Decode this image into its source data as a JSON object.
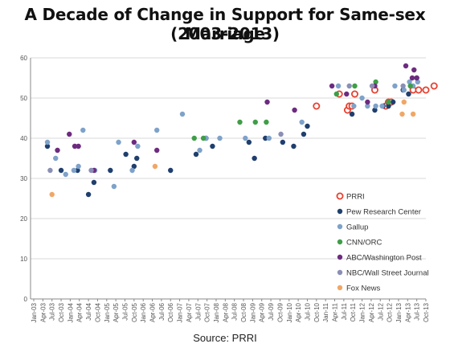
{
  "chart_data": {
    "type": "scatter",
    "title": "A Decade of Change in Support for Same-sex Marriage",
    "subtitle": "(2003-2013)",
    "source": "Source: PRRI",
    "ylim": [
      0,
      60
    ],
    "yticks": [
      0,
      10,
      20,
      30,
      40,
      50,
      60
    ],
    "x_ticks": [
      "Jan-03",
      "Apr-03",
      "Jul-03",
      "Oct-03",
      "Jan-04",
      "Apr-04",
      "Jul-04",
      "Oct-04",
      "Jan-05",
      "Apr-05",
      "Jul-05",
      "Oct-05",
      "Jan-06",
      "Apr-06",
      "Jul-06",
      "Oct-06",
      "Jan-07",
      "Apr-07",
      "Jul-07",
      "Oct-07",
      "Jan-08",
      "Apr-08",
      "Jul-08",
      "Oct-08",
      "Jan-09",
      "Apr-09",
      "Jul-09",
      "Oct-09",
      "Jan-10",
      "Apr-10",
      "Jul-10",
      "Oct-10",
      "Jan-11",
      "Apr-11",
      "Jul-11",
      "Oct-11",
      "Jan-12",
      "Apr-12",
      "Jul-12",
      "Oct-12",
      "Jan-13",
      "Apr-13",
      "Jul-13",
      "Oct-13"
    ],
    "grid": "horizontal",
    "legend_position": "right",
    "series": [
      {
        "name": "PRRI",
        "color": "#e8402f",
        "hollow": true,
        "x": [
          31.0,
          33.5,
          34.4,
          34.6,
          34.9,
          35.2,
          37.4,
          38.6,
          38.9,
          39.2,
          41.6,
          42.2,
          43.0,
          43.9
        ],
        "y": [
          48,
          51,
          47,
          48,
          48,
          51,
          52,
          48,
          49,
          49,
          52,
          52,
          52,
          53
        ]
      },
      {
        "name": "Pew Research Center",
        "color": "#1f3f6e",
        "hollow": false,
        "x": [
          1.5,
          3.0,
          4.8,
          6.0,
          6.6,
          8.4,
          10.1,
          11.0,
          11.3,
          15.0,
          17.8,
          18.9,
          19.6,
          23.6,
          24.2,
          25.4,
          27.3,
          28.5,
          29.6,
          30.0,
          34.9,
          37.4,
          38.3,
          38.9,
          39.4,
          40.5,
          41.1,
          42.0
        ],
        "y": [
          38,
          32,
          32,
          26,
          29,
          32,
          36,
          33,
          35,
          32,
          36,
          40,
          38,
          39,
          35,
          40,
          39,
          38,
          41,
          43,
          46,
          47,
          48,
          48,
          49,
          52,
          51,
          55
        ]
      },
      {
        "name": "Gallup",
        "color": "#7ea2c9",
        "hollow": false,
        "x": [
          1.5,
          2.4,
          3.5,
          4.4,
          4.9,
          5.4,
          6.7,
          8.8,
          9.3,
          10.8,
          11.4,
          13.5,
          16.3,
          18.2,
          18.9,
          20.4,
          23.2,
          25.8,
          29.4,
          33.4,
          35.1,
          36.0,
          36.6,
          37.5,
          38.2,
          39.6,
          40.6,
          41.2,
          41.6,
          42.1
        ],
        "y": [
          39,
          35,
          31,
          32,
          33,
          42,
          32,
          28,
          39,
          32,
          38,
          42,
          46,
          37,
          40,
          40,
          40,
          40,
          44,
          53,
          48,
          50,
          48,
          48,
          48,
          53,
          52,
          54,
          53,
          54
        ]
      },
      {
        "name": "CNN/ORC",
        "color": "#3f9e47",
        "hollow": false,
        "x": [
          17.6,
          18.6,
          22.6,
          24.3,
          25.5,
          33.2,
          35.2,
          37.5,
          38.9,
          41.3
        ],
        "y": [
          40,
          40,
          44,
          44,
          44,
          51,
          53,
          54,
          49,
          53
        ]
      },
      {
        "name": "ABC/Washington Post",
        "color": "#6d2b80",
        "hollow": false,
        "x": [
          2.6,
          3.9,
          4.5,
          4.9,
          6.6,
          11.0,
          13.5,
          25.6,
          28.6,
          32.7,
          34.3,
          36.6,
          37.4,
          40.8,
          41.5,
          41.7,
          42.0
        ],
        "y": [
          37,
          41,
          38,
          38,
          32,
          39,
          37,
          49,
          47,
          53,
          51,
          49,
          53,
          58,
          55,
          57,
          55
        ]
      },
      {
        "name": "NBC/Wall Street Journal",
        "color": "#8a8fb5",
        "hollow": false,
        "x": [
          1.8,
          6.3,
          27.1,
          34.6,
          37.1,
          40.5
        ],
        "y": [
          32,
          32,
          41,
          53,
          53,
          53
        ]
      },
      {
        "name": "Fox News",
        "color": "#f0a766",
        "hollow": false,
        "x": [
          2.0,
          13.3,
          40.4,
          40.6,
          41.6
        ],
        "y": [
          26,
          33,
          46,
          49,
          46
        ]
      }
    ]
  }
}
